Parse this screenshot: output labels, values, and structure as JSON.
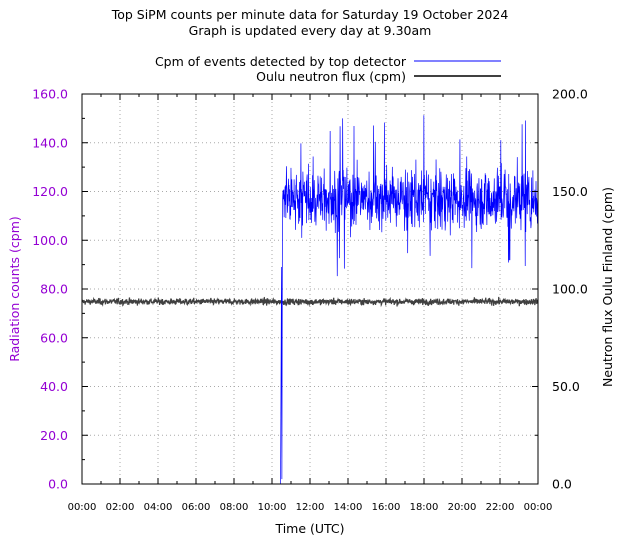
{
  "chart_data": {
    "type": "line",
    "title": "Top SiPM counts per minute data for Saturday 19 October 2024",
    "subtitle": "Graph is updated every day at 9.30am",
    "xlabel": "Time (UTC)",
    "ylabel_left": "Radiation counts (cpm)",
    "ylabel_right": "Neutron flux Oulu Finland (cpm)",
    "x_tick_labels": [
      "00:00",
      "02:00",
      "04:00",
      "06:00",
      "08:00",
      "10:00",
      "12:00",
      "14:00",
      "16:00",
      "18:00",
      "20:00",
      "22:00",
      "00:00"
    ],
    "xlim_hours": [
      0,
      24
    ],
    "ylim_left": [
      0,
      160
    ],
    "left_ticks": [
      0,
      20,
      40,
      60,
      80,
      100,
      120,
      140,
      160
    ],
    "left_tick_labels": [
      "0.0",
      "20.0",
      "40.0",
      "60.0",
      "80.0",
      "100.0",
      "120.0",
      "140.0",
      "160.0"
    ],
    "ylim_right": [
      0,
      200
    ],
    "right_ticks": [
      0,
      50,
      100,
      150,
      200
    ],
    "right_tick_labels": [
      "0.0",
      "50.0",
      "100.0",
      "150.0",
      "200.0"
    ],
    "grid": true,
    "legend_position": "top-center",
    "series": [
      {
        "name": "Cpm of events detected by top detector",
        "axis": "left",
        "color": "#0000ff",
        "start_hour": 10.45,
        "end_hour": 24,
        "typical_range": [
          100,
          135
        ],
        "mean": 117,
        "max": 153,
        "min": 85,
        "dip": {
          "hour": 10.45,
          "value": 0
        },
        "spike": {
          "hour": 10.5,
          "value": 89
        }
      },
      {
        "name": "Oulu neutron flux (cpm)",
        "axis": "right",
        "color": "#404040",
        "start_hour": 0,
        "end_hour": 24,
        "mean": 93.5,
        "typical_range": [
          91,
          96
        ]
      }
    ]
  },
  "colors": {
    "left_axis": "#9400d3",
    "series_blue": "#0000ff",
    "series_gray": "#404040"
  }
}
